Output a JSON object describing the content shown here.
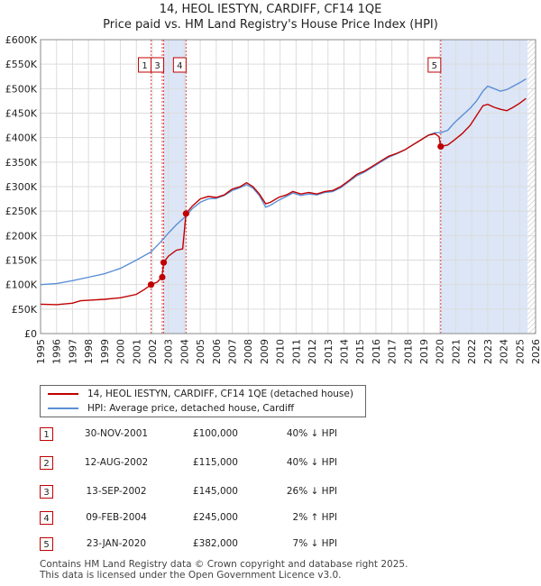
{
  "header": {
    "title_line1": "14, HEOL IESTYN, CARDIFF, CF14 1QE",
    "title_line2": "Price paid vs. HM Land Registry's House Price Index (HPI)"
  },
  "colors": {
    "property": "#c00000",
    "hpi": "#5b8fd6",
    "band": "#dce6f7",
    "marker_border": "#c00000"
  },
  "chart_data": {
    "type": "line",
    "ylim": [
      0,
      600000
    ],
    "xlim": [
      1995,
      2026
    ],
    "y_ticks": [
      {
        "value": 0,
        "label": "£0"
      },
      {
        "value": 50000,
        "label": "£50K"
      },
      {
        "value": 100000,
        "label": "£100K"
      },
      {
        "value": 150000,
        "label": "£150K"
      },
      {
        "value": 200000,
        "label": "£200K"
      },
      {
        "value": 250000,
        "label": "£250K"
      },
      {
        "value": 300000,
        "label": "£300K"
      },
      {
        "value": 350000,
        "label": "£350K"
      },
      {
        "value": 400000,
        "label": "£400K"
      },
      {
        "value": 450000,
        "label": "£450K"
      },
      {
        "value": 500000,
        "label": "£500K"
      },
      {
        "value": 550000,
        "label": "£550K"
      },
      {
        "value": 600000,
        "label": "£600K"
      }
    ],
    "x_ticks": [
      "1995",
      "1996",
      "1997",
      "1998",
      "1999",
      "2000",
      "2001",
      "2002",
      "2003",
      "2004",
      "2005",
      "2006",
      "2007",
      "2008",
      "2009",
      "2010",
      "2011",
      "2012",
      "2013",
      "2014",
      "2015",
      "2016",
      "2017",
      "2018",
      "2019",
      "2020",
      "2021",
      "2022",
      "2023",
      "2024",
      "2025",
      "2026"
    ],
    "series": [
      {
        "name": "14, HEOL IESTYN, CARDIFF, CF14 1QE (detached house)",
        "color": "#c00000",
        "points": [
          [
            1995.0,
            60000
          ],
          [
            1996.0,
            59000
          ],
          [
            1997.0,
            62000
          ],
          [
            1997.5,
            67000
          ],
          [
            1998.0,
            68000
          ],
          [
            1999.0,
            70000
          ],
          [
            2000.0,
            73000
          ],
          [
            2001.0,
            80000
          ],
          [
            2001.5,
            90000
          ],
          [
            2001.92,
            100000
          ],
          [
            2002.3,
            105000
          ],
          [
            2002.6,
            115000
          ],
          [
            2002.71,
            145000
          ],
          [
            2003.0,
            158000
          ],
          [
            2003.5,
            170000
          ],
          [
            2003.9,
            173000
          ],
          [
            2004.11,
            245000
          ],
          [
            2004.5,
            260000
          ],
          [
            2005.0,
            275000
          ],
          [
            2005.5,
            280000
          ],
          [
            2006.0,
            278000
          ],
          [
            2006.5,
            283000
          ],
          [
            2007.0,
            295000
          ],
          [
            2007.5,
            300000
          ],
          [
            2007.9,
            308000
          ],
          [
            2008.3,
            300000
          ],
          [
            2008.7,
            285000
          ],
          [
            2009.1,
            265000
          ],
          [
            2009.4,
            268000
          ],
          [
            2009.9,
            278000
          ],
          [
            2010.4,
            283000
          ],
          [
            2010.8,
            290000
          ],
          [
            2011.3,
            285000
          ],
          [
            2011.8,
            288000
          ],
          [
            2012.3,
            285000
          ],
          [
            2012.8,
            290000
          ],
          [
            2013.3,
            292000
          ],
          [
            2013.8,
            300000
          ],
          [
            2014.3,
            312000
          ],
          [
            2014.8,
            325000
          ],
          [
            2015.3,
            332000
          ],
          [
            2015.8,
            342000
          ],
          [
            2016.3,
            352000
          ],
          [
            2016.8,
            362000
          ],
          [
            2017.3,
            368000
          ],
          [
            2017.8,
            375000
          ],
          [
            2018.3,
            385000
          ],
          [
            2018.8,
            395000
          ],
          [
            2019.3,
            405000
          ],
          [
            2019.7,
            408000
          ],
          [
            2019.95,
            402000
          ],
          [
            2020.06,
            382000
          ],
          [
            2020.5,
            385000
          ],
          [
            2020.9,
            395000
          ],
          [
            2021.4,
            408000
          ],
          [
            2021.9,
            425000
          ],
          [
            2022.3,
            445000
          ],
          [
            2022.7,
            465000
          ],
          [
            2023.0,
            468000
          ],
          [
            2023.4,
            462000
          ],
          [
            2023.8,
            458000
          ],
          [
            2024.2,
            455000
          ],
          [
            2024.6,
            462000
          ],
          [
            2025.0,
            470000
          ],
          [
            2025.4,
            480000
          ]
        ]
      },
      {
        "name": "HPI: Average price, detached house, Cardiff",
        "color": "#5b8fd6",
        "points": [
          [
            1995.0,
            100000
          ],
          [
            1996.0,
            102000
          ],
          [
            1997.0,
            108000
          ],
          [
            1998.0,
            115000
          ],
          [
            1999.0,
            122000
          ],
          [
            2000.0,
            133000
          ],
          [
            2001.0,
            150000
          ],
          [
            2001.92,
            167000
          ],
          [
            2002.6,
            190000
          ],
          [
            2003.0,
            205000
          ],
          [
            2003.5,
            222000
          ],
          [
            2004.11,
            240000
          ],
          [
            2004.5,
            255000
          ],
          [
            2005.0,
            268000
          ],
          [
            2005.5,
            275000
          ],
          [
            2006.0,
            276000
          ],
          [
            2006.5,
            282000
          ],
          [
            2007.0,
            292000
          ],
          [
            2007.5,
            298000
          ],
          [
            2007.9,
            304000
          ],
          [
            2008.3,
            297000
          ],
          [
            2008.7,
            282000
          ],
          [
            2009.1,
            258000
          ],
          [
            2009.4,
            262000
          ],
          [
            2009.9,
            272000
          ],
          [
            2010.4,
            280000
          ],
          [
            2010.8,
            287000
          ],
          [
            2011.3,
            282000
          ],
          [
            2011.8,
            285000
          ],
          [
            2012.3,
            283000
          ],
          [
            2012.8,
            288000
          ],
          [
            2013.3,
            290000
          ],
          [
            2013.8,
            298000
          ],
          [
            2014.3,
            310000
          ],
          [
            2014.8,
            322000
          ],
          [
            2015.3,
            330000
          ],
          [
            2015.8,
            340000
          ],
          [
            2016.3,
            350000
          ],
          [
            2016.8,
            360000
          ],
          [
            2017.3,
            367000
          ],
          [
            2017.8,
            375000
          ],
          [
            2018.3,
            385000
          ],
          [
            2018.8,
            395000
          ],
          [
            2019.3,
            405000
          ],
          [
            2019.7,
            410000
          ],
          [
            2020.06,
            410000
          ],
          [
            2020.5,
            415000
          ],
          [
            2020.9,
            430000
          ],
          [
            2021.4,
            445000
          ],
          [
            2021.9,
            460000
          ],
          [
            2022.3,
            475000
          ],
          [
            2022.7,
            495000
          ],
          [
            2023.0,
            505000
          ],
          [
            2023.4,
            500000
          ],
          [
            2023.8,
            495000
          ],
          [
            2024.2,
            498000
          ],
          [
            2024.6,
            505000
          ],
          [
            2025.0,
            512000
          ],
          [
            2025.4,
            520000
          ]
        ]
      }
    ],
    "sales": [
      {
        "n": "1",
        "x": 2001.92,
        "price": 100000
      },
      {
        "n": "2",
        "x": 2002.62,
        "price": 115000
      },
      {
        "n": "3",
        "x": 2002.71,
        "price": 145000
      },
      {
        "n": "4",
        "x": 2004.11,
        "price": 245000
      },
      {
        "n": "5",
        "x": 2020.06,
        "price": 382000
      }
    ],
    "label_markers": [
      {
        "n": "1",
        "x": 2001.92
      },
      {
        "n": "3",
        "x": 2002.71
      },
      {
        "n": "4",
        "x": 2004.11
      },
      {
        "n": "5",
        "x": 2020.06
      }
    ],
    "bands": [
      [
        2002.71,
        2004.11
      ],
      [
        2020.06,
        2025.5
      ]
    ]
  },
  "legend": {
    "property_label": "14, HEOL IESTYN, CARDIFF, CF14 1QE (detached house)",
    "hpi_label": "HPI: Average price, detached house, Cardiff"
  },
  "transactions": [
    {
      "n": "1",
      "date": "30-NOV-2001",
      "price": "£100,000",
      "hpi": "40% ↓ HPI"
    },
    {
      "n": "2",
      "date": "12-AUG-2002",
      "price": "£115,000",
      "hpi": "40% ↓ HPI"
    },
    {
      "n": "3",
      "date": "13-SEP-2002",
      "price": "£145,000",
      "hpi": "26% ↓ HPI"
    },
    {
      "n": "4",
      "date": "09-FEB-2004",
      "price": "£245,000",
      "hpi": "2% ↑ HPI"
    },
    {
      "n": "5",
      "date": "23-JAN-2020",
      "price": "£382,000",
      "hpi": "7% ↓ HPI"
    }
  ],
  "footer": {
    "line1": "Contains HM Land Registry data © Crown copyright and database right 2025.",
    "line2": "This data is licensed under the Open Government Licence v3.0."
  }
}
